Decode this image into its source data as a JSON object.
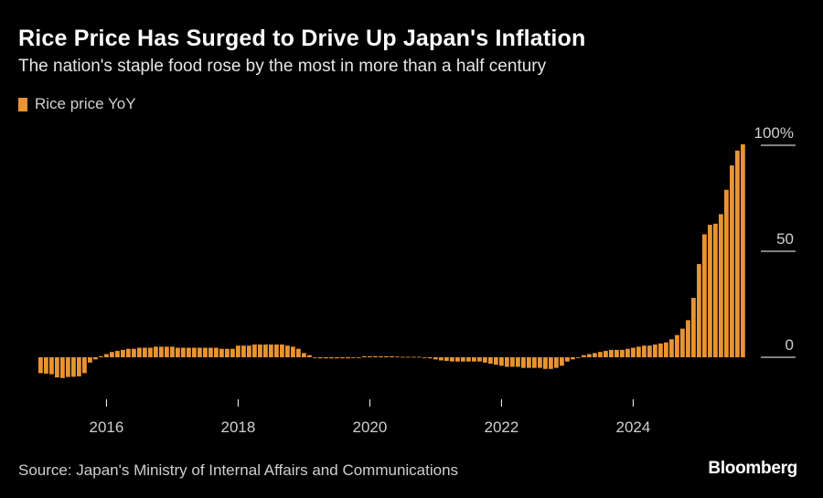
{
  "title": "Rice Price Has Surged to Drive Up Japan's Inflation",
  "subtitle": "The nation's staple food rose by the most in more than a half century",
  "legend_label": "Rice price YoY",
  "source": "Source: Japan's Ministry of Internal Affairs and Communications",
  "brand": "Bloomberg",
  "colors": {
    "bar": "#e99332",
    "background": "#000000",
    "axis": "#ffffff",
    "text": "#cfcfcf"
  },
  "chart_data": {
    "type": "bar",
    "title": "Rice Price Has Surged to Drive Up Japan's Inflation",
    "xlabel": "",
    "ylabel": "",
    "x_ticks": [
      "2016",
      "2018",
      "2020",
      "2022",
      "2024"
    ],
    "y_ticks": [
      "0",
      "50",
      "100%"
    ],
    "y_tick_values": [
      0,
      50,
      100
    ],
    "ylim": [
      -10,
      101
    ],
    "grid": false,
    "legend": "top-left",
    "start_period": "2015-01",
    "series": [
      {
        "name": "Rice price YoY",
        "frequency": "monthly",
        "values": [
          -7.5,
          -7.7,
          -8.0,
          -9.5,
          -9.8,
          -9.3,
          -9.2,
          -9.0,
          -7.5,
          -2.5,
          -1.0,
          0.5,
          1.5,
          2.5,
          3.0,
          3.5,
          4.0,
          4.0,
          4.5,
          4.5,
          4.5,
          5.0,
          5.0,
          5.0,
          5.0,
          4.5,
          4.5,
          4.5,
          4.5,
          4.5,
          4.5,
          4.5,
          4.5,
          4.0,
          4.0,
          4.0,
          5.5,
          5.5,
          5.5,
          6.0,
          6.0,
          6.0,
          6.0,
          6.0,
          6.0,
          5.5,
          5.0,
          4.0,
          2.0,
          1.0,
          0.0,
          -0.5,
          -0.5,
          -0.5,
          -0.5,
          -0.5,
          -0.5,
          -0.3,
          0.0,
          0.5,
          0.5,
          0.5,
          0.5,
          0.5,
          0.5,
          0.3,
          0.2,
          0.2,
          0.2,
          0.2,
          -0.3,
          -0.5,
          -1.0,
          -1.5,
          -1.7,
          -2.0,
          -2.0,
          -2.0,
          -2.0,
          -2.0,
          -2.0,
          -2.5,
          -3.0,
          -3.5,
          -4.0,
          -4.5,
          -4.5,
          -4.5,
          -5.0,
          -5.0,
          -5.0,
          -5.0,
          -5.5,
          -5.5,
          -5.0,
          -4.0,
          -2.0,
          -1.0,
          0.0,
          1.0,
          1.5,
          2.0,
          2.5,
          3.0,
          3.5,
          3.5,
          3.5,
          4.0,
          4.5,
          5.0,
          5.5,
          5.5,
          6.0,
          6.5,
          7.0,
          8.5,
          10.5,
          13.5,
          17.5,
          28.0,
          44.0,
          58.0,
          62.5,
          63.0,
          67.5,
          79.0,
          90.5,
          97.5,
          100.5
        ]
      }
    ]
  }
}
